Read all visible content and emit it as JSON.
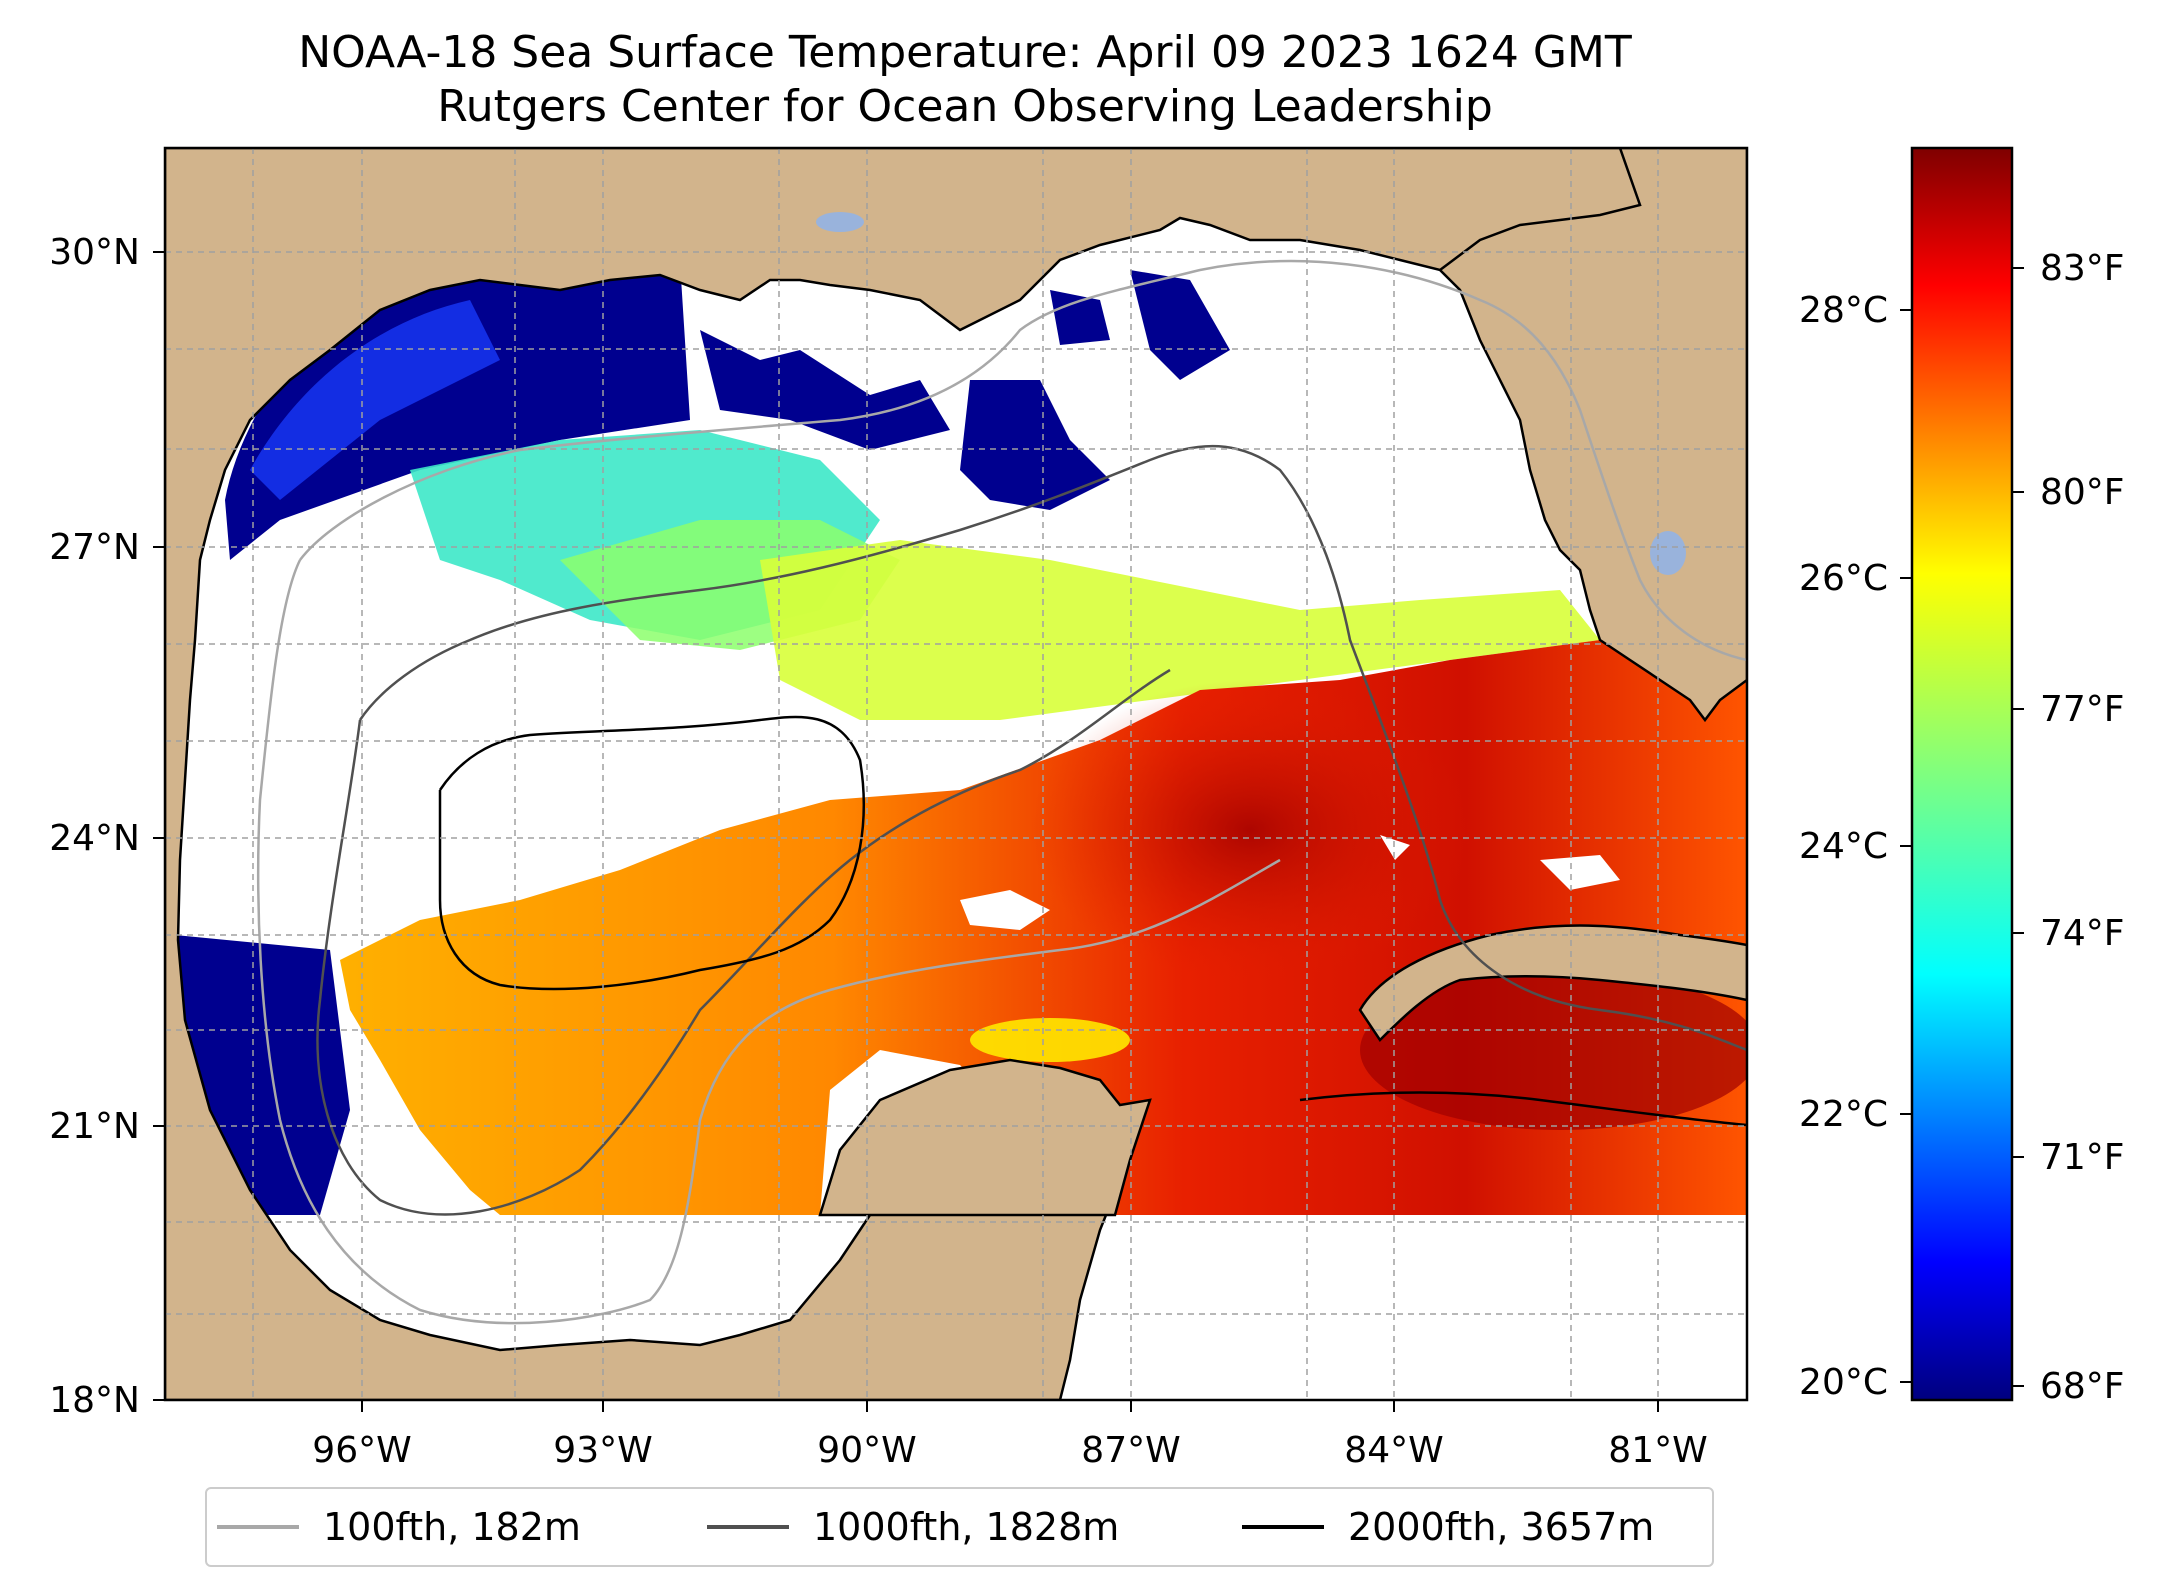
{
  "title": {
    "line1": "NOAA-18 Sea Surface Temperature: April 09 2023 1624 GMT",
    "line2": "Rutgers Center for Ocean Observing Leadership"
  },
  "map": {
    "lon_range": [
      -98,
      -80.25
    ],
    "lat_range": [
      18,
      31
    ],
    "lon_ticks": [
      "96°W",
      "93°W",
      "90°W",
      "87°W",
      "84°W",
      "81°W"
    ],
    "lat_ticks": [
      "18°N",
      "21°N",
      "24°N",
      "27°N",
      "30°N"
    ],
    "colors": {
      "land": "#d2b48c",
      "water_body": "#99b3dc",
      "no_data": "#ffffff",
      "grid": "#a0a0a0"
    }
  },
  "colorbar": {
    "colormap": "jet",
    "celsius_ticks": [
      "20°C",
      "22°C",
      "24°C",
      "26°C",
      "28°C"
    ],
    "fahrenheit_ticks": [
      "68°F",
      "71°F",
      "74°F",
      "77°F",
      "80°F",
      "83°F"
    ]
  },
  "legend": {
    "items": [
      {
        "label": "100fth, 182m",
        "color": "#a8a8a8"
      },
      {
        "label": "1000fth, 1828m",
        "color": "#505050"
      },
      {
        "label": "2000fth, 3657m",
        "color": "#000000"
      }
    ]
  }
}
